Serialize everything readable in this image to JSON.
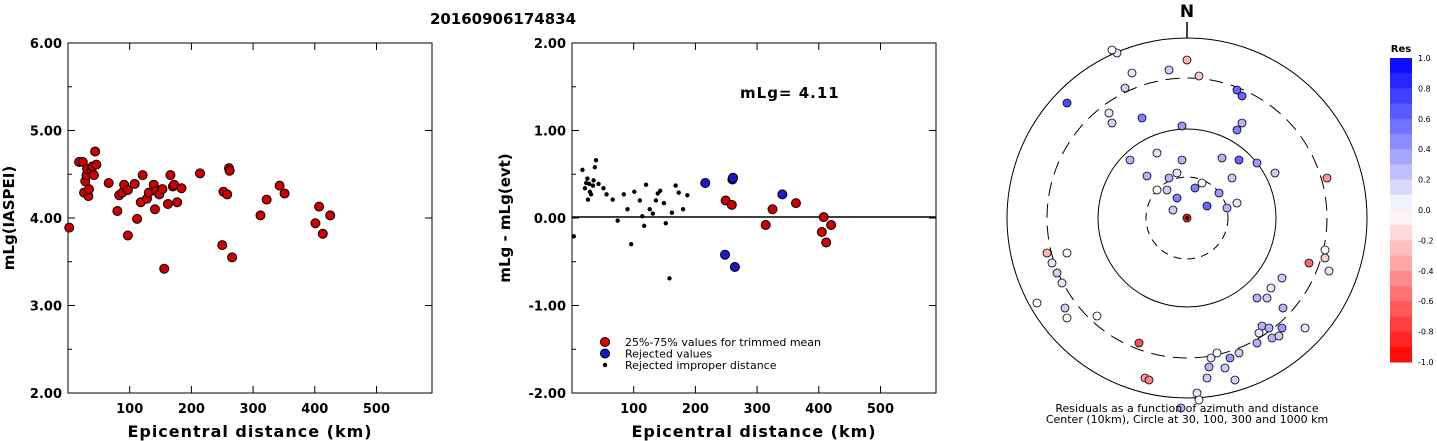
{
  "title": "20160906174834",
  "panel1": {
    "ylabel": "mLg(IASPEI)",
    "xlabel": "Epicentral distance (km)",
    "y_ticks": [
      "6.00",
      "5.00",
      "4.00",
      "3.00",
      "2.00"
    ],
    "x_ticks": [
      "100",
      "200",
      "300",
      "400",
      "500"
    ]
  },
  "panel2": {
    "ylabel": "mLg - mLg(evt)",
    "xlabel": "Epicentral distance (km)",
    "y_ticks": [
      "2.00",
      "1.00",
      "0.00",
      "-1.00",
      "-2.00"
    ],
    "x_ticks": [
      "100",
      "200",
      "300",
      "400",
      "500"
    ],
    "annotation": "mLg= 4.11",
    "legend": [
      {
        "label": "25%-75% values for trimmed mean",
        "color": "#dd0000"
      },
      {
        "label": "Rejected values",
        "color": "#1a1acc"
      },
      {
        "label": "Rejected improper distance",
        "color": "#000000"
      }
    ]
  },
  "panel3": {
    "north_label": "N",
    "caption_line1": "Residuals as a function of azimuth and distance",
    "caption_line2": "Center (10km), Circle at 30, 100, 300 and 1000 km"
  },
  "colorbar": {
    "title": "Res",
    "labels": [
      "1.0",
      "0.8",
      "0.6",
      "0.4",
      "0.2",
      "0.0",
      "-0.2",
      "-0.4",
      "-0.6",
      "-0.8",
      "-1.0"
    ]
  },
  "chart_data": [
    {
      "type": "scatter",
      "title": "20160906174834",
      "xlabel": "Epicentral distance (km)",
      "ylabel": "mLg(IASPEI)",
      "xlim": [
        0,
        590
      ],
      "ylim": [
        2.0,
        6.0
      ],
      "series": [
        {
          "points": [
            [
              2,
              3.89
            ],
            [
              18,
              4.64
            ],
            [
              24,
              4.64
            ],
            [
              26,
              4.29
            ],
            [
              28,
              4.42
            ],
            [
              30,
              4.49
            ],
            [
              31,
              4.56
            ],
            [
              33,
              4.25
            ],
            [
              34,
              4.33
            ],
            [
              38,
              4.55
            ],
            [
              40,
              4.59
            ],
            [
              42,
              4.49
            ],
            [
              44,
              4.76
            ],
            [
              46,
              4.61
            ],
            [
              66,
              4.4
            ],
            [
              80,
              4.08
            ],
            [
              83,
              4.26
            ],
            [
              88,
              4.29
            ],
            [
              91,
              4.38
            ],
            [
              97,
              4.32
            ],
            [
              97,
              3.8
            ],
            [
              108,
              4.39
            ],
            [
              112,
              3.99
            ],
            [
              118,
              4.18
            ],
            [
              121,
              4.49
            ],
            [
              128,
              4.22
            ],
            [
              131,
              4.29
            ],
            [
              139,
              4.38
            ],
            [
              141,
              4.1
            ],
            [
              143,
              4.31
            ],
            [
              148,
              4.27
            ],
            [
              153,
              4.33
            ],
            [
              156,
              3.42
            ],
            [
              162,
              4.16
            ],
            [
              166,
              4.49
            ],
            [
              170,
              4.36
            ],
            [
              172,
              4.38
            ],
            [
              177,
              4.18
            ],
            [
              184,
              4.34
            ],
            [
              214,
              4.51
            ],
            [
              250,
              3.69
            ],
            [
              252,
              4.3
            ],
            [
              258,
              4.27
            ],
            [
              261,
              4.57
            ],
            [
              262,
              4.54
            ],
            [
              266,
              3.55
            ],
            [
              312,
              4.03
            ],
            [
              322,
              4.21
            ],
            [
              343,
              4.37
            ],
            [
              351,
              4.28
            ],
            [
              401,
              3.94
            ],
            [
              407,
              4.13
            ],
            [
              413,
              3.82
            ],
            [
              425,
              4.03
            ]
          ]
        }
      ]
    },
    {
      "type": "scatter",
      "xlabel": "Epicentral distance (km)",
      "ylabel": "mLg - mLg(evt)",
      "xlim": [
        0,
        590
      ],
      "ylim": [
        -2.0,
        2.0
      ],
      "annotation": "mLg= 4.11",
      "series": [
        {
          "name": "25%-75% values for trimmed mean",
          "points": [
            [
              249,
              0.2
            ],
            [
              259,
              0.15
            ],
            [
              314,
              -0.08
            ],
            [
              325,
              0.1
            ],
            [
              363,
              0.17
            ],
            [
              405,
              -0.16
            ],
            [
              408,
              0.01
            ],
            [
              412,
              -0.28
            ],
            [
              420,
              -0.08
            ]
          ]
        },
        {
          "name": "Rejected values",
          "points": [
            [
              216,
              0.4
            ],
            [
              248,
              -0.42
            ],
            [
              260,
              0.44
            ],
            [
              261,
              0.46
            ],
            [
              264,
              -0.56
            ],
            [
              341,
              0.27
            ]
          ]
        },
        {
          "name": "Rejected improper distance",
          "points": [
            [
              3,
              -0.21
            ],
            [
              17,
              0.55
            ],
            [
              21,
              0.34
            ],
            [
              23,
              0.4
            ],
            [
              25,
              0.45
            ],
            [
              26,
              0.21
            ],
            [
              28,
              0.39
            ],
            [
              29,
              0.3
            ],
            [
              31,
              0.27
            ],
            [
              34,
              0.37
            ],
            [
              35,
              0.43
            ],
            [
              37,
              0.58
            ],
            [
              39,
              0.66
            ],
            [
              43,
              0.39
            ],
            [
              51,
              0.34
            ],
            [
              56,
              0.27
            ],
            [
              66,
              0.21
            ],
            [
              74,
              -0.03
            ],
            [
              84,
              0.27
            ],
            [
              90,
              0.1
            ],
            [
              96,
              -0.3
            ],
            [
              101,
              0.3
            ],
            [
              110,
              0.2
            ],
            [
              114,
              0.02
            ],
            [
              117,
              -0.09
            ],
            [
              120,
              0.38
            ],
            [
              126,
              0.1
            ],
            [
              131,
              0.05
            ],
            [
              136,
              0.2
            ],
            [
              139,
              0.28
            ],
            [
              143,
              0.31
            ],
            [
              149,
              0.17
            ],
            [
              152,
              -0.06
            ],
            [
              158,
              -0.69
            ],
            [
              162,
              0.06
            ],
            [
              168,
              0.37
            ],
            [
              173,
              0.29
            ],
            [
              180,
              0.1
            ],
            [
              187,
              0.26
            ]
          ]
        }
      ]
    },
    {
      "type": "scatter",
      "xlabel": "",
      "ylabel": "",
      "rings_km": [
        30,
        100,
        300,
        1000
      ],
      "center_km": 10,
      "series": [
        {
          "points": [
            [
              0,
              0,
              -0.9
            ],
            [
              0,
              0,
              0.8
            ],
            [
              -120,
              -115,
              0.7
            ],
            [
              -20,
              -28,
              0.2
            ],
            [
              -10,
              -20,
              0.5
            ],
            [
              20,
              -12,
              0.6
            ],
            [
              40,
              -10,
              0.3
            ],
            [
              50,
              -15,
              0.1
            ],
            [
              32,
              -25,
              0.4
            ],
            [
              8,
              -30,
              0.5
            ],
            [
              -18,
              -40,
              0.3
            ],
            [
              -10,
              -45,
              0.1
            ],
            [
              15,
              -35,
              0.0
            ],
            [
              45,
              -40,
              0.2
            ],
            [
              52,
              -58,
              0.6
            ],
            [
              70,
              -55,
              0.4
            ],
            [
              55,
              -95,
              0.3
            ],
            [
              50,
              -88,
              0.5
            ],
            [
              -5,
              -92,
              0.4
            ],
            [
              88,
              -45,
              0.2
            ],
            [
              -30,
              -28,
              0.0
            ],
            [
              0,
              -158,
              -0.3
            ],
            [
              -70,
              -165,
              0.1
            ],
            [
              -75,
              -168,
              0.0
            ],
            [
              -140,
              35,
              -0.3
            ],
            [
              -135,
              45,
              0.1
            ],
            [
              -120,
              35,
              0.0
            ],
            [
              -130,
              55,
              0.2
            ],
            [
              -125,
              65,
              0.1
            ],
            [
              -150,
              85,
              0.0
            ],
            [
              -122,
              90,
              0.2
            ],
            [
              -90,
              98,
              0.0
            ],
            [
              -57,
              -58,
              0.3
            ],
            [
              -120,
              100,
              0.0
            ],
            [
              -48,
              125,
              -0.7
            ],
            [
              -42,
              160,
              -0.4
            ],
            [
              -38,
              162,
              -0.5
            ],
            [
              -6,
              190,
              0.3
            ],
            [
              10,
              175,
              0.1
            ],
            [
              12,
              182,
              0.0
            ],
            [
              20,
              160,
              0.2
            ],
            [
              22,
              149,
              0.3
            ],
            [
              24,
              140,
              0.1
            ],
            [
              30,
              135,
              0.0
            ],
            [
              38,
              150,
              0.2
            ],
            [
              43,
              140,
              0.4
            ],
            [
              48,
              162,
              0.2
            ],
            [
              52,
              135,
              0.2
            ],
            [
              70,
              125,
              0.3
            ],
            [
              75,
              108,
              0.3
            ],
            [
              82,
              110,
              0.3
            ],
            [
              85,
              120,
              0.3
            ],
            [
              92,
              118,
              0.2
            ],
            [
              96,
              90,
              0.3
            ],
            [
              95,
              110,
              0.4
            ],
            [
              70,
              80,
              0.3
            ],
            [
              72,
              115,
              0.1
            ],
            [
              80,
              80,
              0.2
            ],
            [
              84,
              70,
              0.1
            ],
            [
              95,
              60,
              0.2
            ],
            [
              118,
              110,
              0.1
            ],
            [
              122,
              45,
              -0.6
            ],
            [
              138,
              40,
              -0.2
            ],
            [
              142,
              53,
              0.1
            ],
            [
              140,
              -40,
              -0.4
            ],
            [
              138,
              32,
              0.0
            ],
            [
              -75,
              -95,
              0.2
            ],
            [
              -78,
              -105,
              0.1
            ],
            [
              -45,
              -100,
              0.5
            ],
            [
              12,
              -142,
              -0.2
            ],
            [
              -18,
              -148,
              0.2
            ],
            [
              50,
              -128,
              0.6
            ],
            [
              55,
              -122,
              0.6
            ],
            [
              35,
              -60,
              0.3
            ],
            [
              -40,
              -42,
              0.3
            ],
            [
              -14,
              -8,
              0.2
            ],
            [
              -30,
              -65,
              0.1
            ],
            [
              -5,
              -58,
              0.3
            ],
            [
              -62,
              -130,
              0.2
            ],
            [
              -55,
              -145,
              0.1
            ]
          ]
        }
      ]
    }
  ]
}
